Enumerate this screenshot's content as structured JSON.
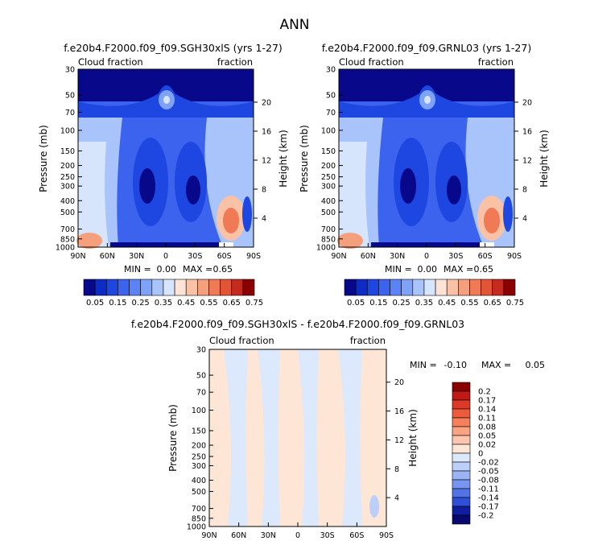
{
  "figure_title": "ANN",
  "chart_data": [
    {
      "type": "heatmap",
      "id": "panel1",
      "title": "f.e20b4.F2000.f09_f09.SGH30xlS (yrs 1-27)",
      "left_label": "Cloud fraction",
      "right_label": "fraction",
      "ylabel": "Pressure (mb)",
      "ylabel_right": "Height (km)",
      "pressure_ticks": [
        "30",
        "50",
        "70",
        "100",
        "150",
        "200",
        "250",
        "300",
        "400",
        "500",
        "700",
        "850",
        "1000"
      ],
      "pressure_values": [
        30,
        50,
        70,
        100,
        150,
        200,
        250,
        300,
        400,
        500,
        700,
        850,
        1000
      ],
      "height_ticks": [
        "20",
        "16",
        "12",
        "8",
        "4"
      ],
      "height_values": [
        20,
        16,
        12,
        8,
        4
      ],
      "x_ticks": [
        "90N",
        "60N",
        "30N",
        "0",
        "30S",
        "60S",
        "90S"
      ],
      "x_values": [
        90,
        60,
        30,
        0,
        -30,
        -60,
        -90
      ],
      "xlim": [
        90,
        -90
      ],
      "ylim": [
        1000,
        30
      ],
      "stats": {
        "min_label": "MIN =",
        "min": "0.00",
        "max_label": "MAX =",
        "max": "0.65"
      },
      "colorbar": {
        "labels": [
          "0.05",
          "0.15",
          "0.25",
          "0.35",
          "0.45",
          "0.55",
          "0.65",
          "0.75"
        ],
        "colors": [
          "#08088b",
          "#0d2bc7",
          "#1e46e0",
          "#3c63ee",
          "#5b83f5",
          "#7fa2f9",
          "#a9c4fb",
          "#d6e4fc",
          "#fde3d6",
          "#f9c2a7",
          "#f5a07d",
          "#ef7a55",
          "#e25436",
          "#c42a1e",
          "#8b0000"
        ]
      }
    },
    {
      "type": "heatmap",
      "id": "panel2",
      "title": "f.e20b4.F2000.f09_f09.GRNL03 (yrs 1-27)",
      "left_label": "Cloud fraction",
      "right_label": "fraction",
      "ylabel": "Pressure (mb)",
      "ylabel_right": "Height (km)",
      "pressure_ticks": [
        "30",
        "50",
        "70",
        "100",
        "150",
        "200",
        "250",
        "300",
        "400",
        "500",
        "700",
        "850",
        "1000"
      ],
      "pressure_values": [
        30,
        50,
        70,
        100,
        150,
        200,
        250,
        300,
        400,
        500,
        700,
        850,
        1000
      ],
      "height_ticks": [
        "20",
        "16",
        "12",
        "8",
        "4"
      ],
      "height_values": [
        20,
        16,
        12,
        8,
        4
      ],
      "x_ticks": [
        "90N",
        "60N",
        "30N",
        "0",
        "30S",
        "60S",
        "90S"
      ],
      "x_values": [
        90,
        60,
        30,
        0,
        -30,
        -60,
        -90
      ],
      "xlim": [
        90,
        -90
      ],
      "ylim": [
        1000,
        30
      ],
      "stats": {
        "min_label": "MIN =",
        "min": "0.00",
        "max_label": "MAX =",
        "max": "0.65"
      },
      "colorbar": {
        "labels": [
          "0.05",
          "0.15",
          "0.25",
          "0.35",
          "0.45",
          "0.55",
          "0.65",
          "0.75"
        ],
        "colors": [
          "#08088b",
          "#0d2bc7",
          "#1e46e0",
          "#3c63ee",
          "#5b83f5",
          "#7fa2f9",
          "#a9c4fb",
          "#d6e4fc",
          "#fde3d6",
          "#f9c2a7",
          "#f5a07d",
          "#ef7a55",
          "#e25436",
          "#c42a1e",
          "#8b0000"
        ]
      }
    },
    {
      "type": "heatmap",
      "id": "panel3",
      "title": "f.e20b4.F2000.f09_f09.SGH30xlS - f.e20b4.F2000.f09_f09.GRNL03",
      "left_label": "Cloud fraction",
      "right_label": "fraction",
      "ylabel": "Pressure (mb)",
      "ylabel_right": "Height (km)",
      "pressure_ticks": [
        "30",
        "50",
        "70",
        "100",
        "150",
        "200",
        "250",
        "300",
        "400",
        "500",
        "700",
        "850",
        "1000"
      ],
      "pressure_values": [
        30,
        50,
        70,
        100,
        150,
        200,
        250,
        300,
        400,
        500,
        700,
        850,
        1000
      ],
      "height_ticks": [
        "20",
        "16",
        "12",
        "8",
        "4"
      ],
      "height_values": [
        20,
        16,
        12,
        8,
        4
      ],
      "x_ticks": [
        "90N",
        "60N",
        "30N",
        "0",
        "30S",
        "60S",
        "90S"
      ],
      "x_values": [
        90,
        60,
        30,
        0,
        -30,
        -60,
        -90
      ],
      "xlim": [
        90,
        -90
      ],
      "ylim": [
        1000,
        30
      ],
      "stats": {
        "min_label": "MIN =",
        "min": "-0.10",
        "max_label": "MAX =",
        "max": "0.05"
      },
      "colorbar": {
        "labels": [
          "0.2",
          "0.17",
          "0.14",
          "0.11",
          "0.08",
          "0.05",
          "0.02",
          "0",
          "-0.02",
          "-0.05",
          "-0.08",
          "-0.11",
          "-0.14",
          "-0.17",
          "-0.2"
        ],
        "colors": [
          "#8b0000",
          "#c01a16",
          "#dc3a26",
          "#ee5b3c",
          "#f67f5c",
          "#f9a384",
          "#fbc6ad",
          "#fde6d6",
          "#dce8fb",
          "#bccff9",
          "#9ab4f6",
          "#7795f0",
          "#5272e6",
          "#2e4fd6",
          "#0e1e9e",
          "#08086e"
        ]
      }
    }
  ]
}
